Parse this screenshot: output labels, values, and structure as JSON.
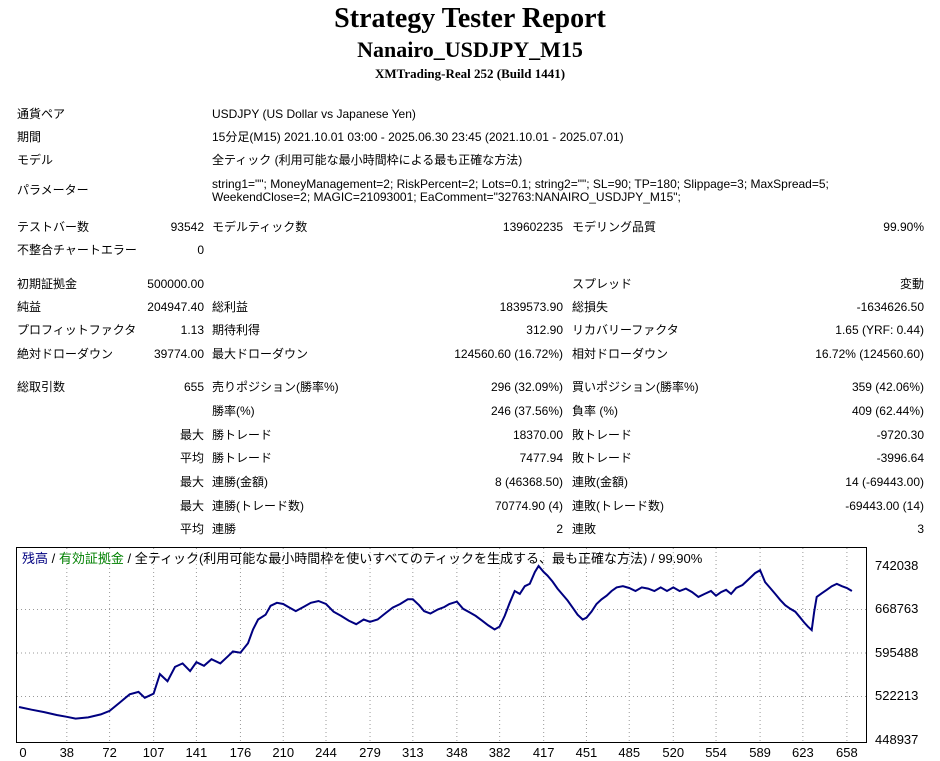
{
  "header": {
    "title": "Strategy Tester Report",
    "subtitle": "Nanairo_USDJPY_M15",
    "server": "XMTrading-Real 252 (Build 1441)"
  },
  "info": {
    "symbol_label": "通貨ペア",
    "symbol_value": "USDJPY (US Dollar vs Japanese Yen)",
    "period_label": "期間",
    "period_value": "15分足(M15) 2021.10.01 03:00 - 2025.06.30 23:45 (2021.10.01 - 2025.07.01)",
    "model_label": "モデル",
    "model_value": "全ティック (利用可能な最小時間枠による最も正確な方法)",
    "params_label": "パラメーター",
    "params_line1": "string1=\"\"; MoneyManagement=2; RiskPercent=2; Lots=0.1; string2=\"\"; SL=90; TP=180; Slippage=3; MaxSpread=5;",
    "params_line2": "WeekendClose=2; MAGIC=21093001; EaComment=\"32763:NANAIRO_USDJPY_M15\";"
  },
  "stats": {
    "bars_label": "テストバー数",
    "bars_value": "93542",
    "ticks_label": "モデルティック数",
    "ticks_value": "139602235",
    "quality_label": "モデリング品質",
    "quality_value": "99.90%",
    "mismatch_label": "不整合チャートエラー",
    "mismatch_value": "0",
    "deposit_label": "初期証拠金",
    "deposit_value": "500000.00",
    "spread_label": "スプレッド",
    "spread_value": "変動",
    "net_label": "純益",
    "net_value": "204947.40",
    "gross_profit_label": "総利益",
    "gross_profit_value": "1839573.90",
    "gross_loss_label": "総損失",
    "gross_loss_value": "-1634626.50",
    "pf_label": "プロフィットファクタ",
    "pf_value": "1.13",
    "payoff_label": "期待利得",
    "payoff_value": "312.90",
    "recovery_label": "リカバリーファクタ",
    "recovery_value": "1.65 (YRF: 0.44)",
    "abs_dd_label": "絶対ドローダウン",
    "abs_dd_value": "39774.00",
    "max_dd_label": "最大ドローダウン",
    "max_dd_value": "124560.60 (16.72%)",
    "rel_dd_label": "相対ドローダウン",
    "rel_dd_value": "16.72% (124560.60)",
    "trades_label": "総取引数",
    "trades_value": "655",
    "short_label": "売りポジション(勝率%)",
    "short_value": "296 (32.09%)",
    "long_label": "買いポジション(勝率%)",
    "long_value": "359 (42.06%)",
    "win_label": "勝率(%)",
    "win_value": "246 (37.56%)",
    "loss_label": "負率 (%)",
    "loss_value": "409 (62.44%)",
    "largest_label": "最大",
    "largest_win_label": "勝トレード",
    "largest_win_value": "18370.00",
    "largest_loss_label": "敗トレード",
    "largest_loss_value": "-9720.30",
    "average_label": "平均",
    "avg_win_label": "勝トレード",
    "avg_win_value": "7477.94",
    "avg_loss_label": "敗トレード",
    "avg_loss_value": "-3996.64",
    "max1_label": "最大",
    "cons_win_amt_label": "連勝(金額)",
    "cons_win_amt_value": "8 (46368.50)",
    "cons_loss_amt_label": "連敗(金額)",
    "cons_loss_amt_value": "14 (-69443.00)",
    "max2_label": "最大",
    "cons_win_cnt_label": "連勝(トレード数)",
    "cons_win_cnt_value": "70774.90 (4)",
    "cons_loss_cnt_label": "連敗(トレード数)",
    "cons_loss_cnt_value": "-69443.00 (14)",
    "avg2_label": "平均",
    "avg_cons_win_label": "連勝",
    "avg_cons_win_value": "2",
    "avg_cons_loss_label": "連敗",
    "avg_cons_loss_value": "3"
  },
  "legend": {
    "balance": "残高",
    "sep1": " / ",
    "equity": "有効証拠金",
    "sep2": " / ",
    "model": "全ティック(利用可能な最小時間枠を使いすべてのティックを生成する、最も正確な方法) / 99.90%",
    "balance_color": "#000080",
    "equity_color": "#008000"
  },
  "chart_data": {
    "type": "line",
    "x_ticks": [
      "0",
      "38",
      "72",
      "107",
      "141",
      "176",
      "210",
      "244",
      "279",
      "313",
      "348",
      "382",
      "417",
      "451",
      "485",
      "520",
      "554",
      "589",
      "623",
      "658"
    ],
    "y_ticks": [
      "742038",
      "668763",
      "595488",
      "522213",
      "448937"
    ],
    "ylim": [
      448937,
      742038
    ],
    "xlim": [
      0,
      670
    ],
    "grid": true,
    "series": [
      {
        "color": "#000080",
        "points": [
          [
            0,
            504500
          ],
          [
            10,
            500000
          ],
          [
            20,
            496000
          ],
          [
            30,
            491000
          ],
          [
            38,
            488000
          ],
          [
            45,
            485000
          ],
          [
            55,
            487000
          ],
          [
            65,
            492000
          ],
          [
            72,
            498000
          ],
          [
            80,
            512000
          ],
          [
            88,
            526000
          ],
          [
            95,
            530000
          ],
          [
            100,
            520000
          ],
          [
            107,
            527000
          ],
          [
            112,
            560000
          ],
          [
            118,
            548000
          ],
          [
            124,
            572000
          ],
          [
            130,
            578000
          ],
          [
            136,
            565000
          ],
          [
            141,
            580000
          ],
          [
            147,
            574000
          ],
          [
            153,
            585000
          ],
          [
            160,
            578000
          ],
          [
            166,
            590000
          ],
          [
            170,
            598000
          ],
          [
            176,
            596000
          ],
          [
            182,
            612000
          ],
          [
            186,
            635000
          ],
          [
            190,
            652000
          ],
          [
            196,
            660000
          ],
          [
            200,
            675000
          ],
          [
            205,
            680000
          ],
          [
            210,
            678000
          ],
          [
            215,
            672000
          ],
          [
            220,
            666000
          ],
          [
            226,
            673000
          ],
          [
            232,
            680000
          ],
          [
            238,
            683000
          ],
          [
            244,
            678000
          ],
          [
            250,
            665000
          ],
          [
            256,
            658000
          ],
          [
            262,
            650000
          ],
          [
            268,
            644000
          ],
          [
            274,
            652000
          ],
          [
            279,
            648000
          ],
          [
            285,
            652000
          ],
          [
            291,
            662000
          ],
          [
            297,
            672000
          ],
          [
            303,
            678000
          ],
          [
            309,
            686000
          ],
          [
            313,
            686000
          ],
          [
            318,
            676000
          ],
          [
            322,
            666000
          ],
          [
            327,
            662000
          ],
          [
            333,
            669000
          ],
          [
            338,
            673000
          ],
          [
            342,
            678000
          ],
          [
            348,
            682000
          ],
          [
            353,
            670000
          ],
          [
            358,
            664000
          ],
          [
            363,
            658000
          ],
          [
            368,
            650000
          ],
          [
            373,
            642000
          ],
          [
            378,
            635000
          ],
          [
            382,
            640000
          ],
          [
            386,
            658000
          ],
          [
            390,
            680000
          ],
          [
            394,
            700000
          ],
          [
            398,
            695000
          ],
          [
            402,
            708000
          ],
          [
            406,
            712000
          ],
          [
            410,
            732000
          ],
          [
            413,
            742000
          ],
          [
            417,
            732000
          ],
          [
            420,
            726000
          ],
          [
            424,
            716000
          ],
          [
            428,
            704000
          ],
          [
            432,
            694000
          ],
          [
            436,
            684000
          ],
          [
            440,
            672000
          ],
          [
            444,
            660000
          ],
          [
            448,
            652000
          ],
          [
            451,
            655000
          ],
          [
            455,
            665000
          ],
          [
            459,
            678000
          ],
          [
            463,
            686000
          ],
          [
            467,
            692000
          ],
          [
            471,
            700000
          ],
          [
            475,
            706000
          ],
          [
            480,
            708000
          ],
          [
            485,
            705000
          ],
          [
            490,
            700000
          ],
          [
            495,
            706000
          ],
          [
            500,
            704000
          ],
          [
            505,
            700000
          ],
          [
            510,
            706000
          ],
          [
            515,
            700000
          ],
          [
            520,
            706000
          ],
          [
            525,
            700000
          ],
          [
            530,
            704000
          ],
          [
            535,
            698000
          ],
          [
            540,
            690000
          ],
          [
            545,
            695000
          ],
          [
            550,
            700000
          ],
          [
            554,
            692000
          ],
          [
            558,
            698000
          ],
          [
            562,
            702000
          ],
          [
            566,
            695000
          ],
          [
            570,
            705000
          ],
          [
            575,
            710000
          ],
          [
            580,
            720000
          ],
          [
            585,
            730000
          ],
          [
            589,
            735000
          ],
          [
            593,
            715000
          ],
          [
            597,
            705000
          ],
          [
            601,
            695000
          ],
          [
            605,
            685000
          ],
          [
            609,
            676000
          ],
          [
            613,
            670000
          ],
          [
            617,
            665000
          ],
          [
            621,
            655000
          ],
          [
            624,
            647000
          ],
          [
            627,
            640000
          ],
          [
            630,
            634000
          ],
          [
            632,
            665000
          ],
          [
            634,
            690000
          ],
          [
            638,
            696000
          ],
          [
            642,
            702000
          ],
          [
            646,
            708000
          ],
          [
            650,
            712000
          ],
          [
            654,
            708000
          ],
          [
            658,
            705000
          ],
          [
            662,
            700000
          ]
        ]
      }
    ]
  }
}
